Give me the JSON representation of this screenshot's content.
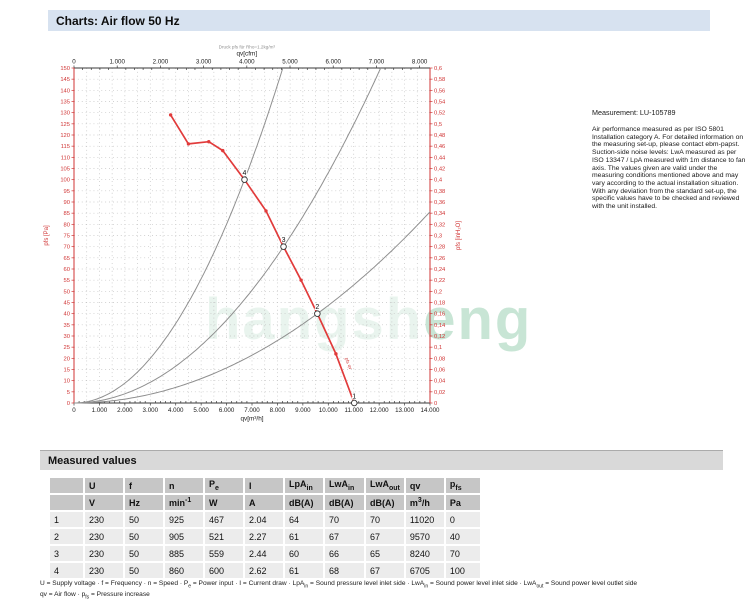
{
  "header": {
    "title": "Charts: Air flow 50 Hz"
  },
  "chart_data": {
    "type": "line",
    "title_note": "Druck pfs für Rho=1.2kg/m³",
    "axes": {
      "x_bottom": {
        "label": "qv[m³/h]",
        "min": 0,
        "max": 14000,
        "tick_step": 1000,
        "minor_step": 200,
        "grid_step": 500,
        "tick_labels": [
          "0",
          "1.000",
          "2.000",
          "3.000",
          "4.000",
          "5.000",
          "6.000",
          "7.000",
          "8.000",
          "9.000",
          "10.000",
          "11.000",
          "12.000",
          "13.000",
          "14.000"
        ]
      },
      "x_top": {
        "label": "qv[cfm]",
        "min": 0,
        "max": 8000,
        "tick_step": 1000,
        "minor_step": 200,
        "m3h_per_cfm": 1.699,
        "tick_labels": [
          "0",
          "1.000",
          "2.000",
          "3.000",
          "4.000",
          "5.000",
          "6.000",
          "7.000",
          "8.000"
        ]
      },
      "y_left": {
        "label": "pfs [Pa]",
        "min": 0,
        "max": 150,
        "tick_step": 5,
        "tick_labels": [
          "150",
          "145",
          "140",
          "135",
          "130",
          "125",
          "120",
          "115",
          "110",
          "105",
          "100",
          "95",
          "90",
          "85",
          "80",
          "75",
          "70",
          "65",
          "60",
          "55",
          "50",
          "45",
          "40",
          "35",
          "30",
          "25",
          "20",
          "15",
          "10",
          "5",
          "0"
        ]
      },
      "y_right": {
        "label": "pfs [inH₂O]",
        "min": 0,
        "max": 0.6,
        "tick_step": 0.02,
        "tick_labels": [
          "0,6",
          "0,58",
          "0,56",
          "0,54",
          "0,52",
          "0,5",
          "0,48",
          "0,46",
          "0,44",
          "0,42",
          "0,4",
          "0,38",
          "0,36",
          "0,34",
          "0,32",
          "0,3",
          "0,28",
          "0,26",
          "0,24",
          "0,22",
          "0,2",
          "0,18",
          "0,16",
          "0,14",
          "0,12",
          "0,1",
          "0,08",
          "0,06",
          "0,04",
          "0,02",
          "0"
        ]
      }
    },
    "fan_curve": {
      "color": "#e13b3b",
      "label": "pfs qv",
      "points": [
        [
          3800,
          129
        ],
        [
          4500,
          116
        ],
        [
          5300,
          117
        ],
        [
          5850,
          113
        ],
        [
          6705,
          100
        ],
        [
          7550,
          86
        ],
        [
          8240,
          70
        ],
        [
          8930,
          55
        ],
        [
          9570,
          40
        ],
        [
          10300,
          22
        ],
        [
          11020,
          0
        ]
      ]
    },
    "system_curves": {
      "color": "#8f8f8f",
      "through_points": [
        [
          6705,
          100
        ],
        [
          8240,
          70
        ],
        [
          9570,
          40
        ]
      ]
    },
    "operating_points": [
      {
        "label": "1",
        "qv": 11020,
        "pfs": 0
      },
      {
        "label": "2",
        "qv": 9570,
        "pfs": 40
      },
      {
        "label": "3",
        "qv": 8240,
        "pfs": 70
      },
      {
        "label": "4",
        "qv": 6705,
        "pfs": 100
      }
    ]
  },
  "measurement_note": {
    "title": "Measurement: LU-105789",
    "body": "Air performance measured as per ISO 5801 Installation category A. For detailed information on the measuring set-up, please contact ebm-papst. Suction-side noise levels: LwA measured as per ISO 13347 / LpA measured with 1m distance to fan axis. The values given are valid under the measuring conditions mentioned above and may vary according to the actual installation situation. With any deviation from the standard set-up, the specific values have to be checked and reviewed with the unit installed."
  },
  "table": {
    "title": "Measured values",
    "columns": [
      {
        "label": [
          {
            "t": ""
          }
        ],
        "unit": [
          {
            "t": ""
          }
        ]
      },
      {
        "label": [
          {
            "t": "U"
          }
        ],
        "unit": [
          {
            "t": "V"
          }
        ]
      },
      {
        "label": [
          {
            "t": "f"
          }
        ],
        "unit": [
          {
            "t": "Hz"
          }
        ]
      },
      {
        "label": [
          {
            "t": "n"
          }
        ],
        "unit": [
          {
            "t": "min"
          },
          {
            "sup": "-1"
          }
        ]
      },
      {
        "label": [
          {
            "t": "P"
          },
          {
            "sub": "e"
          }
        ],
        "unit": [
          {
            "t": "W"
          }
        ]
      },
      {
        "label": [
          {
            "t": "I"
          }
        ],
        "unit": [
          {
            "t": "A"
          }
        ]
      },
      {
        "label": [
          {
            "t": "LpA"
          },
          {
            "sub": "in"
          }
        ],
        "unit": [
          {
            "t": "dB(A)"
          }
        ]
      },
      {
        "label": [
          {
            "t": "LwA"
          },
          {
            "sub": "in"
          }
        ],
        "unit": [
          {
            "t": "dB(A)"
          }
        ]
      },
      {
        "label": [
          {
            "t": "LwA"
          },
          {
            "sub": "out"
          }
        ],
        "unit": [
          {
            "t": "dB(A)"
          }
        ]
      },
      {
        "label": [
          {
            "t": "qv"
          }
        ],
        "unit": [
          {
            "t": "m"
          },
          {
            "sup": "3"
          },
          {
            "t": "/h"
          }
        ]
      },
      {
        "label": [
          {
            "t": "p"
          },
          {
            "sub": "fs"
          }
        ],
        "unit": [
          {
            "t": "Pa"
          }
        ]
      }
    ],
    "rows": [
      [
        "1",
        "230",
        "50",
        "925",
        "467",
        "2.04",
        "64",
        "70",
        "70",
        "11020",
        "0"
      ],
      [
        "2",
        "230",
        "50",
        "905",
        "521",
        "2.27",
        "61",
        "67",
        "67",
        "9570",
        "40"
      ],
      [
        "3",
        "230",
        "50",
        "885",
        "559",
        "2.44",
        "60",
        "66",
        "65",
        "8240",
        "70"
      ],
      [
        "4",
        "230",
        "50",
        "860",
        "600",
        "2.62",
        "61",
        "68",
        "67",
        "6705",
        "100"
      ]
    ]
  },
  "footnotes": {
    "line1": [
      {
        "t": "U = Supply voltage · f = Frequency · n = Speed · P"
      },
      {
        "sub": "e"
      },
      {
        "t": " = Power input · I = Current draw · LpA"
      },
      {
        "sub": "in"
      },
      {
        "t": " = Sound pressure level inlet side · LwA"
      },
      {
        "sub": "in"
      },
      {
        "t": " = Sound power level inlet side · LwA"
      },
      {
        "sub": "out"
      },
      {
        "t": " = Sound power level outlet side"
      }
    ],
    "line2": [
      {
        "t": "qv = Air flow · p"
      },
      {
        "sub": "fs"
      },
      {
        "t": " = Pressure increase"
      }
    ]
  },
  "watermark": {
    "text_left": "hangsh",
    "text_right": "eng"
  }
}
